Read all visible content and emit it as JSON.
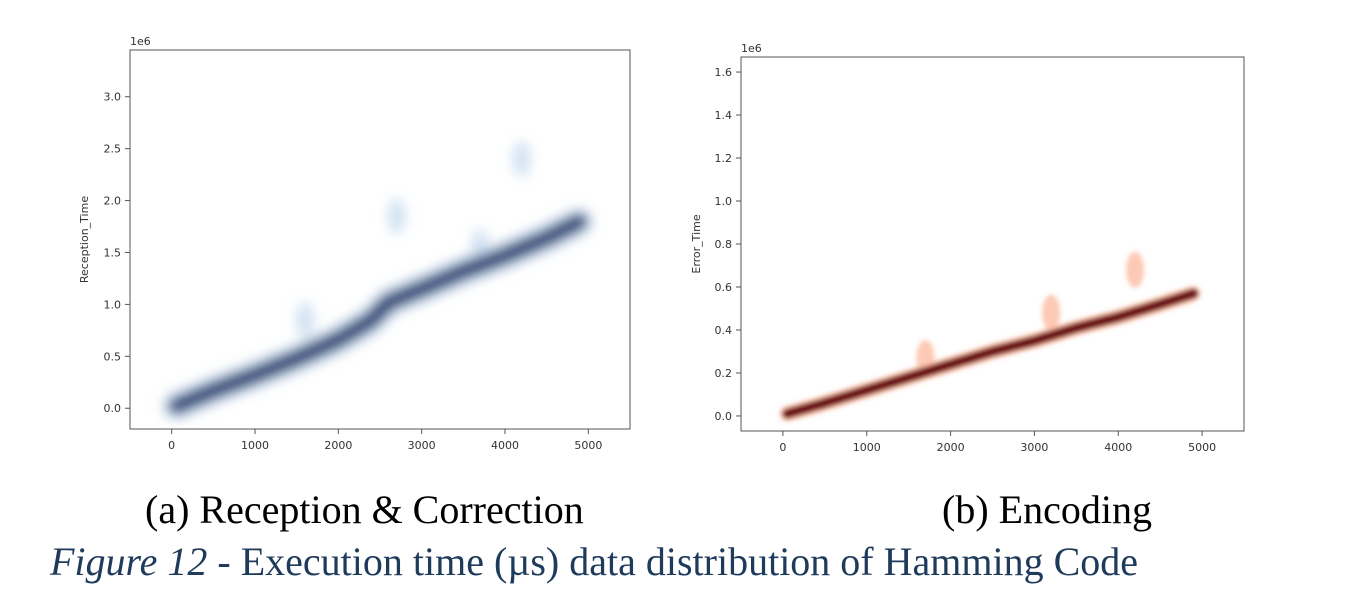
{
  "chart_data": [
    {
      "type": "scatter",
      "style": "density (kde) plot",
      "panel_label": "(a) Reception & Correction",
      "ylabel": "Reception_Time",
      "y_offset_label": "1e6",
      "xlim": [
        -500,
        5500
      ],
      "ylim": [
        -0.2,
        3.45
      ],
      "x_ticks": [
        "0",
        "1000",
        "2000",
        "3000",
        "4000",
        "5000"
      ],
      "y_ticks": [
        "0.0",
        "0.5",
        "1.0",
        "1.5",
        "2.0",
        "2.5",
        "3.0"
      ],
      "x_tick_values": [
        0,
        1000,
        2000,
        3000,
        4000,
        5000
      ],
      "y_tick_values": [
        0.0,
        0.5,
        1.0,
        1.5,
        2.0,
        2.5,
        3.0
      ],
      "trend": {
        "x": [
          50,
          500,
          1000,
          1500,
          2000,
          2400,
          2600,
          3000,
          3500,
          4000,
          4500,
          4900
        ],
        "y": [
          0.02,
          0.17,
          0.32,
          0.48,
          0.66,
          0.85,
          1.02,
          1.15,
          1.32,
          1.47,
          1.64,
          1.8
        ]
      },
      "outliers": {
        "x": [
          1600,
          2700,
          3700,
          4200
        ],
        "y": [
          0.85,
          1.85,
          1.55,
          2.4
        ]
      },
      "color": "#08306b",
      "light_color": "#c6dbef",
      "grid": false,
      "legend": "none"
    },
    {
      "type": "scatter",
      "style": "density (kde) plot",
      "panel_label": "(b) Encoding",
      "ylabel": "Error_Time",
      "y_offset_label": "1e6",
      "xlim": [
        -500,
        5500
      ],
      "ylim": [
        -0.07,
        1.67
      ],
      "x_ticks": [
        "0",
        "1000",
        "2000",
        "3000",
        "4000",
        "5000"
      ],
      "y_ticks": [
        "0.0",
        "0.2",
        "0.4",
        "0.6",
        "0.8",
        "1.0",
        "1.2",
        "1.4",
        "1.6"
      ],
      "x_tick_values": [
        0,
        1000,
        2000,
        3000,
        4000,
        5000
      ],
      "y_tick_values": [
        0.0,
        0.2,
        0.4,
        0.6,
        0.8,
        1.0,
        1.2,
        1.4,
        1.6
      ],
      "trend": {
        "x": [
          50,
          500,
          1000,
          1500,
          2000,
          2500,
          3000,
          3500,
          4000,
          4500,
          4900
        ],
        "y": [
          0.01,
          0.06,
          0.12,
          0.18,
          0.24,
          0.3,
          0.35,
          0.41,
          0.46,
          0.52,
          0.57
        ]
      },
      "outliers": {
        "x": [
          1700,
          3200,
          4200
        ],
        "y": [
          0.27,
          0.48,
          0.68
        ]
      },
      "color": "#67000d",
      "light_color": "#fcbba1",
      "grid": false,
      "legend": "none"
    }
  ],
  "captions": {
    "sub_a": "(a) Reception & Correction",
    "sub_b": "(b) Encoding",
    "figure_label": "Figure 12",
    "figure_text": " - Execution time (µs) data distribution of Hamming Code"
  }
}
